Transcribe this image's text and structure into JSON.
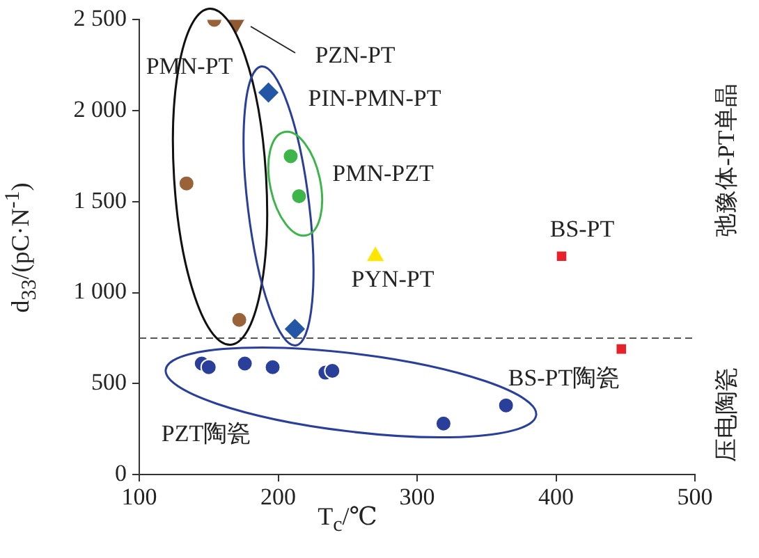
{
  "chart_data": {
    "type": "scatter",
    "xlabel": "T$_{c}$/℃",
    "ylabel": "d$_{33}$/(pC·N$^{-1}$)",
    "xlim": [
      100,
      500
    ],
    "xticks": [
      100,
      200,
      300,
      400,
      500
    ],
    "ylim": [
      0,
      2500
    ],
    "yticks": [
      0,
      500,
      {
        "value": 1000,
        "label": "1 000"
      },
      {
        "value": 1500,
        "label": "1 500"
      },
      {
        "value": 2000,
        "label": "2 000"
      },
      {
        "value": 2500,
        "label": "2 500"
      }
    ],
    "grid": false,
    "legend": false,
    "series": [
      {
        "color": "#9a6239",
        "marker": "circle",
        "x": [
          154,
          134,
          172
        ],
        "values": [
          2500,
          1600,
          850
        ]
      },
      {
        "color": "#8f5a32",
        "marker": "triangle-down",
        "x": [
          170
        ],
        "values": [
          2480
        ]
      },
      {
        "color": "#2456a6",
        "marker": "diamond",
        "x": [
          193,
          212
        ],
        "values": [
          2100,
          800
        ]
      },
      {
        "color": "#3db54a",
        "marker": "circle",
        "x": [
          209,
          215
        ],
        "values": [
          1750,
          1530
        ]
      },
      {
        "color": "#ffe600",
        "marker": "triangle",
        "x": [
          270
        ],
        "values": [
          1200
        ]
      },
      {
        "color": "#e8202a",
        "marker": "square",
        "x": [
          404
        ],
        "values": [
          1200
        ]
      },
      {
        "color": "#e8202a",
        "marker": "square",
        "x": [
          447
        ],
        "values": [
          690
        ]
      },
      {
        "color": "#2a3f9a",
        "marker": "circle",
        "x": [
          145,
          150,
          176,
          196,
          234,
          239,
          319,
          364
        ],
        "values": [
          610,
          590,
          610,
          590,
          560,
          570,
          280,
          380
        ]
      }
    ],
    "ref_lines": [
      {
        "axis": "y",
        "value": 750,
        "line_style": "dashed",
        "color": "#555555"
      }
    ],
    "annotations": [
      "PMN-PT",
      "PZN-PT",
      "PIN-PMN-PT",
      "PMN-PZT",
      "PYN-PT",
      "BS-PT",
      "BS-PT陶瓷",
      "PZT陶瓷",
      "弛豫体-PT单晶",
      "压电陶瓷"
    ]
  }
}
